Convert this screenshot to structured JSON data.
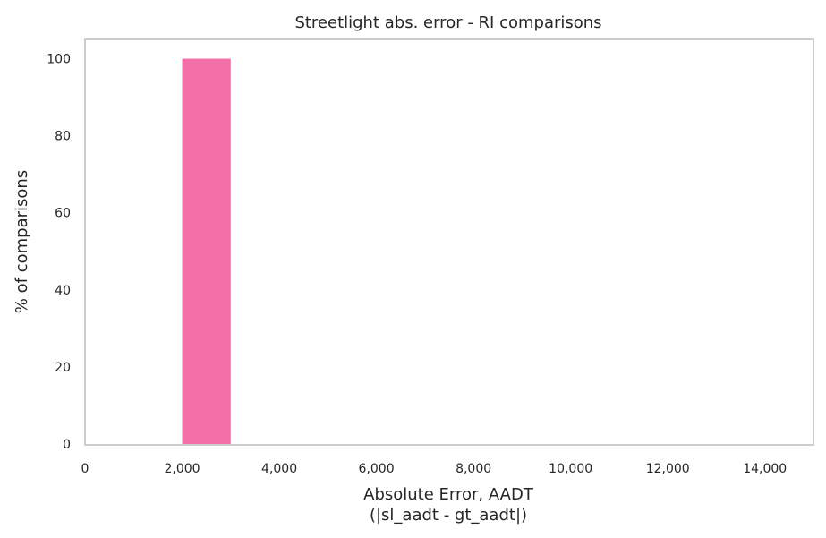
{
  "chart_data": {
    "type": "bar",
    "title": "Streetlight abs. error - RI comparisons",
    "xlabel_line1": "Absolute Error, AADT",
    "xlabel_line2": "(|sl_aadt - gt_aadt|)",
    "ylabel": "% of comparisons",
    "xlim": [
      0,
      15000
    ],
    "ylim": [
      0,
      105
    ],
    "xticks": [
      0,
      2000,
      4000,
      6000,
      8000,
      10000,
      12000,
      14000
    ],
    "xtick_labels": [
      "0",
      "2,000",
      "4,000",
      "6,000",
      "8,000",
      "10,000",
      "12,000",
      "14,000"
    ],
    "yticks": [
      0,
      20,
      40,
      60,
      80,
      100
    ],
    "ytick_labels": [
      "0",
      "20",
      "40",
      "60",
      "80",
      "100"
    ],
    "bins": [
      {
        "start": 2000,
        "end": 3000,
        "value": 100
      }
    ],
    "grid": false,
    "colors": {
      "bar": "#f46ea8",
      "spine": "#cccccc",
      "text": "#262626"
    }
  }
}
